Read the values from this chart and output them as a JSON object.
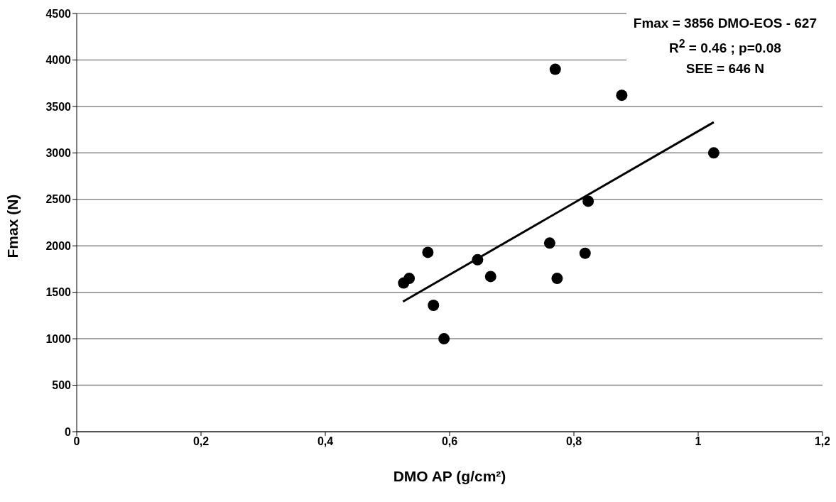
{
  "chart_data": {
    "type": "scatter",
    "xlabel": "DMO AP (g/cm²)",
    "ylabel": "Fmax (N)",
    "annotations": [
      "Fmax = 3856 DMO-EOS - 627",
      "R$^{2}$ = 0.46 ; p=0.08",
      "SEE = 646 N"
    ],
    "series": [
      {
        "color": "#000000",
        "marker": "circle",
        "x": [
          0.526,
          0.535,
          0.565,
          0.574,
          0.591,
          0.645,
          0.666,
          0.761,
          0.77,
          0.773,
          0.818,
          0.823,
          0.877,
          1.025
        ],
        "values": [
          1600,
          1650,
          1930,
          1360,
          1000,
          1850,
          1670,
          2030,
          3900,
          1650,
          1920,
          2480,
          3620,
          3000
        ]
      },
      {
        "type": "line",
        "color": "#000000",
        "marker": "none",
        "x": [
          0.525,
          1.025
        ],
        "values": [
          1400,
          3330
        ]
      }
    ],
    "xlim": [
      0,
      1.2
    ],
    "xticks": [
      0,
      {
        "value": 0.2,
        "label": "0,2"
      },
      {
        "value": 0.4,
        "label": "0,4"
      },
      {
        "value": 0.6,
        "label": "0,6"
      },
      {
        "value": 0.8,
        "label": "0,8"
      },
      1,
      {
        "value": 1.2,
        "label": "1,2"
      }
    ],
    "ylim": [
      0,
      4500
    ],
    "yticks": [
      0,
      500,
      1000,
      1500,
      2000,
      2500,
      3000,
      3500,
      4000,
      4500
    ],
    "grid": "y"
  }
}
